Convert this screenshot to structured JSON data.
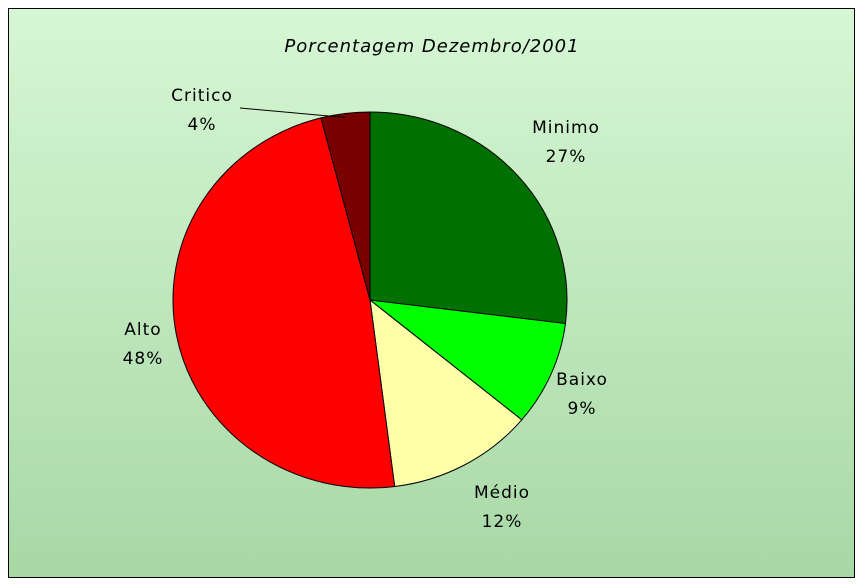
{
  "chart_data": {
    "type": "pie",
    "title": "Porcentagem  Dezembro/2001",
    "categories": [
      "Minimo",
      "Baixo",
      "Médio",
      "Alto",
      "Critico"
    ],
    "values": [
      27,
      9,
      12,
      48,
      4
    ],
    "value_labels": [
      "27%",
      "9%",
      "12%",
      "48%",
      "4%"
    ],
    "colors": [
      "#007000",
      "#00ff00",
      "#ffffa8",
      "#ff0000",
      "#7a0000"
    ]
  }
}
